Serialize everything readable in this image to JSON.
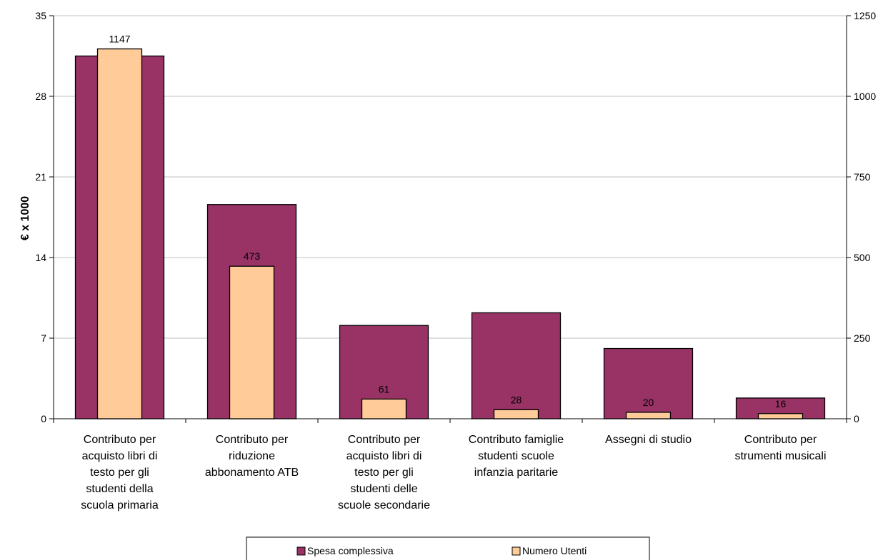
{
  "chart_data": {
    "type": "bar",
    "categories": [
      [
        "Contributo per",
        "acquisto libri di",
        "testo per gli",
        "studenti della",
        "scuola primaria"
      ],
      [
        "Contributo per",
        "riduzione",
        "abbonamento ATB"
      ],
      [
        "Contributo per",
        "acquisto libri di",
        "testo per gli",
        "studenti delle",
        "scuole secondarie"
      ],
      [
        "Contributo famiglie",
        "studenti scuole",
        "infanzia paritarie"
      ],
      [
        "Assegni di studio"
      ],
      [
        "Contributo per",
        "strumenti musicali"
      ]
    ],
    "series": [
      {
        "name": "Spesa complessiva",
        "axis": "left",
        "color": "#993366",
        "values": [
          31.5,
          18.6,
          8.1,
          9.2,
          6.1,
          1.8
        ]
      },
      {
        "name": "Numero Utenti",
        "axis": "right",
        "color": "#FFCC99",
        "values": [
          1147,
          473,
          61,
          28,
          20,
          16
        ]
      }
    ],
    "data_labels": [
      "1147",
      "473",
      "61",
      "28",
      "20",
      "16"
    ],
    "ylabel": "€ x 1000",
    "ylim": [
      0,
      35
    ],
    "y_ticks": [
      "0",
      "7",
      "14",
      "21",
      "28",
      "35"
    ],
    "y2lim": [
      0,
      1250
    ],
    "y2_ticks": [
      "0",
      "250",
      "500",
      "750",
      "1000",
      "1250"
    ],
    "grid": true,
    "legend_position": "bottom"
  }
}
